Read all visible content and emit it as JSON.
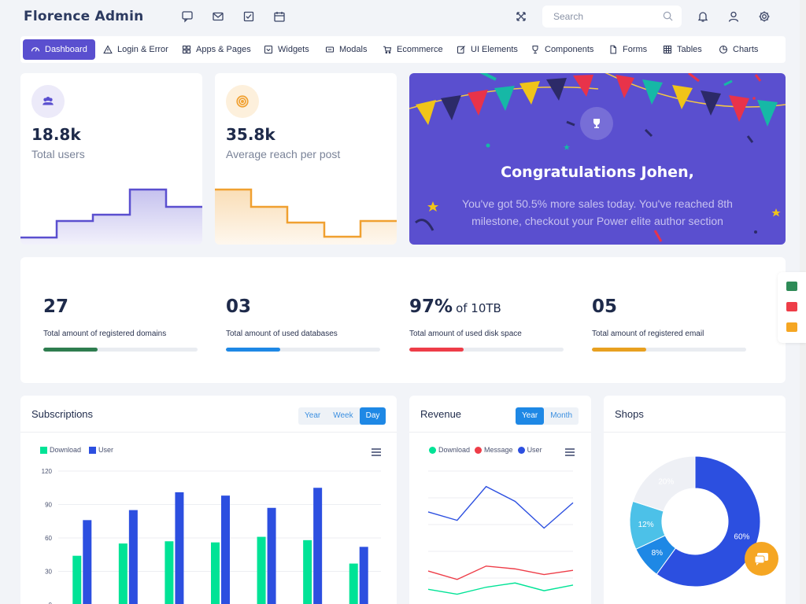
{
  "app": {
    "title": "Florence Admin"
  },
  "search": {
    "placeholder": "Search"
  },
  "nav": {
    "items": [
      {
        "label": "Dashboard",
        "icon": "dashboard-icon",
        "active": true
      },
      {
        "label": "Login & Error",
        "icon": "warning-icon"
      },
      {
        "label": "Apps & Pages",
        "icon": "grid-icon"
      },
      {
        "label": "Widgets",
        "icon": "widget-icon"
      },
      {
        "label": "Modals",
        "icon": "modal-icon"
      },
      {
        "label": "Ecommerce",
        "icon": "cart-icon"
      },
      {
        "label": "UI Elements",
        "icon": "edit-icon"
      },
      {
        "label": "Components",
        "icon": "trophy-icon"
      },
      {
        "label": "Forms",
        "icon": "file-icon"
      },
      {
        "label": "Tables",
        "icon": "table-icon"
      },
      {
        "label": "Charts",
        "icon": "pie-icon"
      }
    ]
  },
  "stats": [
    {
      "value": "18.8k",
      "label": "Total users",
      "color": "#5a4fcf"
    },
    {
      "value": "35.8k",
      "label": "Average reach per post",
      "color": "#f0a030"
    }
  ],
  "congrats": {
    "title": "Congratulations Johen,",
    "text": "You've got 50.5% more sales today. You've reached 8th milestone, checkout your Power elite author section"
  },
  "metrics": [
    {
      "value": "27",
      "suffix": "",
      "label": "Total amount of registered domains",
      "progress": 0.35,
      "color": "#2e7d4f"
    },
    {
      "value": "03",
      "suffix": "",
      "label": "Total amount of used databases",
      "progress": 0.35,
      "color": "#1e88e5"
    },
    {
      "value": "97%",
      "suffix": "of 10TB",
      "label": "Total amount of used disk space",
      "progress": 0.35,
      "color": "#ee3d48"
    },
    {
      "value": "05",
      "suffix": "",
      "label": "Total amount of registered email",
      "progress": 0.35,
      "color": "#e8a020"
    }
  ],
  "subscriptions": {
    "title": "Subscriptions",
    "tabs": [
      "Year",
      "Week",
      "Day"
    ],
    "active_tab": "Day",
    "legend": [
      "Download",
      "User"
    ]
  },
  "revenue": {
    "title": "Revenue",
    "tabs": [
      "Year",
      "Month"
    ],
    "active_tab": "Year",
    "legend": [
      "Download",
      "Message",
      "User"
    ]
  },
  "shops": {
    "title": "Shops"
  },
  "colors": {
    "accent": "#5a4fcf",
    "blue": "#1e88e5",
    "green": "#00e396",
    "user": "#2c4fe0"
  },
  "chart_data": [
    {
      "type": "bar",
      "series": [
        {
          "name": "Download",
          "values": [
            44,
            55,
            57,
            56,
            61,
            58,
            37
          ]
        },
        {
          "name": "User",
          "values": [
            76,
            85,
            101,
            98,
            87,
            105,
            52
          ]
        }
      ],
      "yticks": [
        0,
        30,
        60,
        90,
        120
      ],
      "ylim": [
        0,
        120
      ],
      "legend": "top-left",
      "grid": true
    },
    {
      "type": "line",
      "series": [
        {
          "name": "Download",
          "values": [
            22,
            15,
            25,
            31,
            20,
            28
          ]
        },
        {
          "name": "Message",
          "values": [
            48,
            36,
            55,
            51,
            43,
            49
          ]
        },
        {
          "name": "User",
          "values": [
            132,
            120,
            168,
            147,
            109,
            145
          ]
        }
      ],
      "ylim": [
        0,
        190
      ],
      "legend": "top-left",
      "grid": true
    },
    {
      "type": "pie",
      "series": [
        {
          "label": "60%",
          "value": 60,
          "color": "#2c4fe0"
        },
        {
          "label": "8%",
          "value": 8,
          "color": "#1e88e5"
        },
        {
          "label": "12%",
          "value": 12,
          "color": "#4cc1e8"
        },
        {
          "label": "20%",
          "value": 20,
          "color": "#eef0f5"
        }
      ]
    }
  ]
}
